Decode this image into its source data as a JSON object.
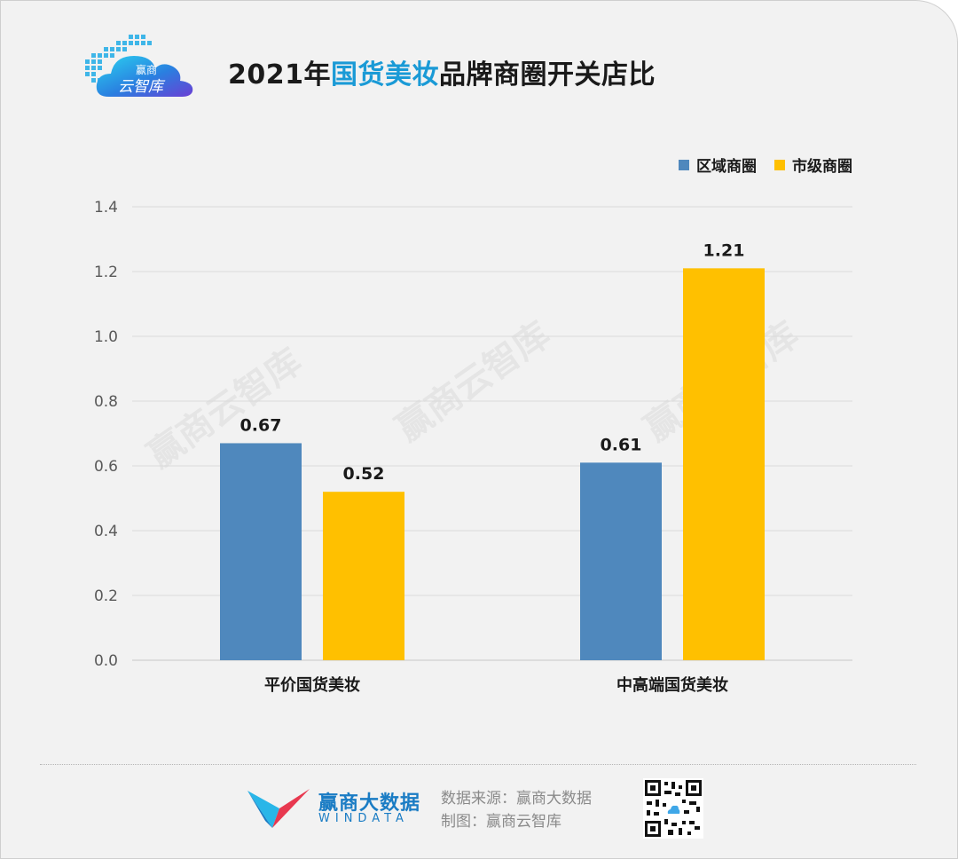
{
  "title_prefix": "2021年",
  "title_highlight": "国货美妆",
  "title_suffix": "品牌商圈开关店比",
  "logo_text": {
    "line1": "赢商",
    "line2": "云智库"
  },
  "legend": [
    {
      "label": "区域商圈",
      "color": "#4f88bd"
    },
    {
      "label": "市级商圈",
      "color": "#ffc000"
    }
  ],
  "chart_data": {
    "type": "bar",
    "categories": [
      "平价国货美妆",
      "中高端国货美妆"
    ],
    "series": [
      {
        "name": "区域商圈",
        "values": [
          0.67,
          0.61
        ],
        "color": "#4f88bd"
      },
      {
        "name": "市级商圈",
        "values": [
          0.52,
          1.21
        ],
        "color": "#ffc000"
      }
    ],
    "ylim": [
      0,
      1.4
    ],
    "yticks": [
      "0.0",
      "0.2",
      "0.4",
      "0.6",
      "0.8",
      "1.0",
      "1.2",
      "1.4"
    ],
    "data_labels": [
      [
        "0.67",
        "0.61"
      ],
      [
        "0.52",
        "1.21"
      ]
    ],
    "grid": true,
    "legend_position": "top-right"
  },
  "watermark": "赢商云智库",
  "footer": {
    "brand_title": "赢商大数据",
    "brand_sub": "WINDATA",
    "source_line1": "数据来源：赢商大数据",
    "source_line2": "制图：赢商云智库"
  }
}
